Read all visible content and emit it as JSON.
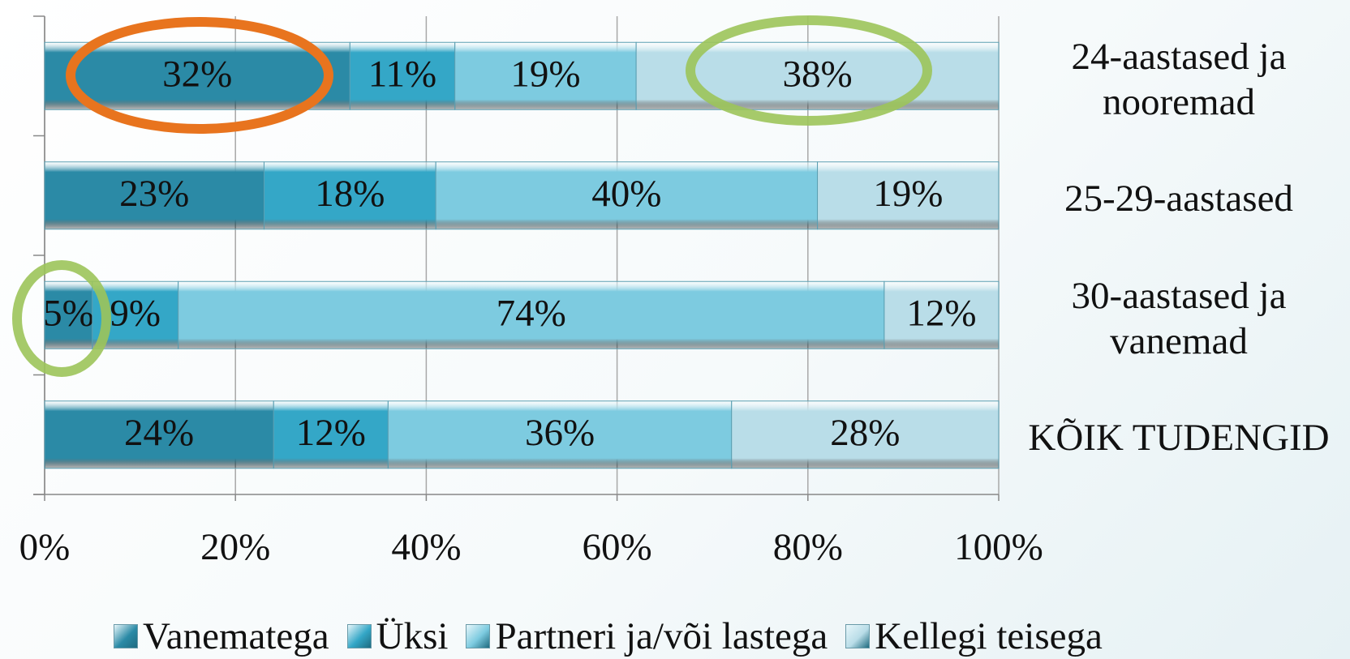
{
  "chart_data": {
    "type": "stacked_bar_horizontal",
    "categories": [
      "24-aastased ja nooremad",
      "25-29-aastased",
      "30-aastased ja vanemad",
      "KÕIK TUDENGID"
    ],
    "series": [
      {
        "name": "Vanematega",
        "color": "#2b8aa6",
        "values": [
          32,
          23,
          5,
          24
        ],
        "value_labels": [
          "32%",
          "23%",
          "5%",
          "24%"
        ]
      },
      {
        "name": "Üksi",
        "color": "#34a7c7",
        "values": [
          11,
          18,
          9,
          12
        ],
        "value_labels": [
          "11%",
          "18%",
          "9%",
          "12%"
        ]
      },
      {
        "name": "Partneri ja/või lastega",
        "color": "#7dcbe0",
        "values": [
          19,
          40,
          74,
          36
        ],
        "value_labels": [
          "19%",
          "40%",
          "74%",
          "36%"
        ]
      },
      {
        "name": "Kellegi teisega",
        "color": "#b9dde8",
        "values": [
          38,
          19,
          12,
          28
        ],
        "value_labels": [
          "38%",
          "19%",
          "12%",
          "28%"
        ]
      }
    ],
    "xlim": [
      0,
      100
    ],
    "xticks": [
      {
        "value": 0,
        "label": "0%"
      },
      {
        "value": 20,
        "label": "20%"
      },
      {
        "value": 40,
        "label": "40%"
      },
      {
        "value": 60,
        "label": "60%"
      },
      {
        "value": 80,
        "label": "80%"
      },
      {
        "value": 100,
        "label": "100%"
      }
    ],
    "grid": true,
    "legend": "bottom"
  }
}
